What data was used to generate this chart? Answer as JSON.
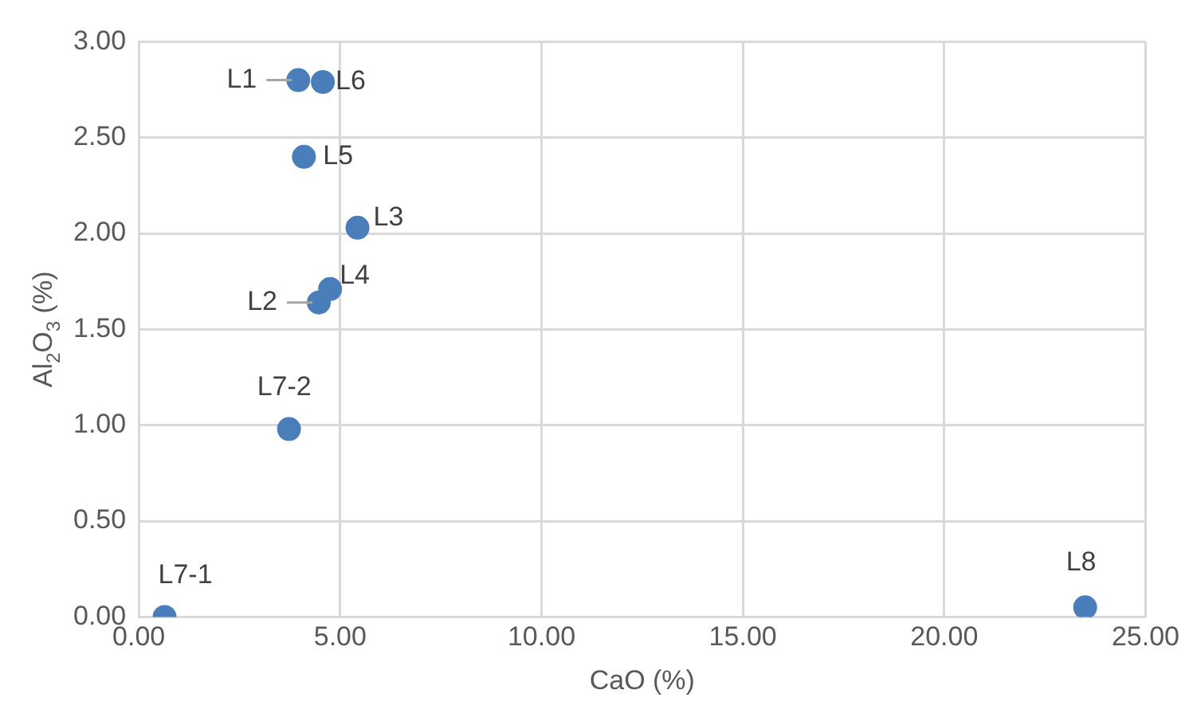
{
  "chart_data": {
    "type": "scatter",
    "xlabel": "CaO (%)",
    "ylabel": "Al$_{2}$O$_{3}$ (%)",
    "x": [
      3.96,
      4.47,
      5.43,
      4.75,
      4.1,
      4.57,
      0.64,
      3.73,
      23.5
    ],
    "series": [
      {
        "color": "#4a7ebb",
        "values": [
          2.8,
          1.64,
          2.03,
          1.71,
          2.4,
          2.79,
          0.0,
          0.98,
          0.05
        ]
      }
    ],
    "annotations": [
      {
        "text": "L1",
        "x": 3.96,
        "y": 2.8
      },
      {
        "text": "L2",
        "x": 4.47,
        "y": 1.64
      },
      {
        "text": "L3",
        "x": 5.43,
        "y": 2.03
      },
      {
        "text": "L4",
        "x": 4.75,
        "y": 1.71
      },
      {
        "text": "L5",
        "x": 4.1,
        "y": 2.4
      },
      {
        "text": "L6",
        "x": 4.57,
        "y": 2.79
      },
      {
        "text": "L7-1",
        "x": 0.64,
        "y": 0.0
      },
      {
        "text": "L7-2",
        "x": 3.73,
        "y": 0.98
      },
      {
        "text": "L8",
        "x": 23.5,
        "y": 0.05
      }
    ],
    "xlim": [
      0,
      25
    ],
    "xticks": [
      {
        "value": 0,
        "label": "0.00"
      },
      {
        "value": 5,
        "label": "5.00"
      },
      {
        "value": 10,
        "label": "10.00"
      },
      {
        "value": 15,
        "label": "15.00"
      },
      {
        "value": 20,
        "label": "20.00"
      },
      {
        "value": 25,
        "label": "25.00"
      }
    ],
    "ylim": [
      0,
      3
    ],
    "yticks": [
      {
        "value": 0,
        "label": "0.00"
      },
      {
        "value": 0.5,
        "label": "0.50"
      },
      {
        "value": 1,
        "label": "1.00"
      },
      {
        "value": 1.5,
        "label": "1.50"
      },
      {
        "value": 2,
        "label": "2.00"
      },
      {
        "value": 2.5,
        "label": "2.50"
      },
      {
        "value": 3,
        "label": "3.00"
      }
    ],
    "grid": true,
    "marker": "circle",
    "legend": false
  }
}
